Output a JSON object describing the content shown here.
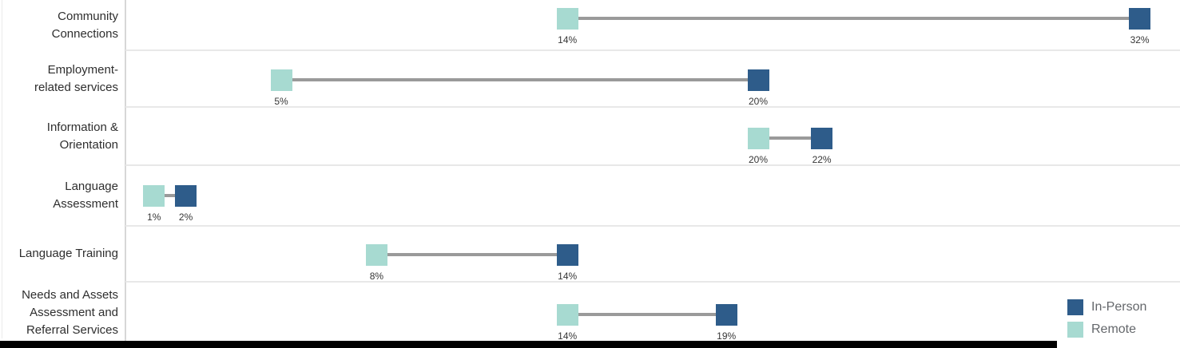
{
  "chart_data": {
    "type": "dumbbell",
    "orientation": "horizontal",
    "categories": [
      "Community Connections",
      "Employment-related services",
      "Information & Orientation",
      "Language Assessment",
      "Language Training",
      "Needs and Assets Assessment and Referral Services"
    ],
    "category_label_lines": [
      [
        "Community",
        "Connections"
      ],
      [
        "Employment-",
        "related services"
      ],
      [
        "Information &",
        "Orientation"
      ],
      [
        "Language",
        "Assessment"
      ],
      [
        "Language Training"
      ],
      [
        "Needs and Assets",
        "Assessment and",
        "Referral Services"
      ]
    ],
    "series": [
      {
        "name": "Remote",
        "color": "#A7DAD1",
        "values": [
          14,
          5,
          20,
          1,
          8,
          14
        ]
      },
      {
        "name": "In-Person",
        "color": "#2E5C8A",
        "values": [
          32,
          20,
          22,
          2,
          14,
          19
        ]
      }
    ],
    "value_labels": [
      [
        "14%",
        "32%"
      ],
      [
        "5%",
        "20%"
      ],
      [
        "20%",
        "22%"
      ],
      [
        "1%",
        "2%"
      ],
      [
        "8%",
        "14%"
      ],
      [
        "14%",
        "19%"
      ]
    ],
    "xlim": [
      0,
      33
    ],
    "grid": true,
    "legend_position": "bottom-right"
  },
  "legend": {
    "items": [
      {
        "label": "In-Person",
        "color": "#2E5C8A"
      },
      {
        "label": "Remote",
        "color": "#A7DAD1"
      }
    ]
  },
  "colors": {
    "connector": "#9A9A9A",
    "gridline": "#E8E8E8",
    "axis_line": "#D7D7D7",
    "category_text": "#2E2E2E",
    "value_text": "#363636",
    "legend_text": "#64676B",
    "overlay_bar": "#000000"
  }
}
